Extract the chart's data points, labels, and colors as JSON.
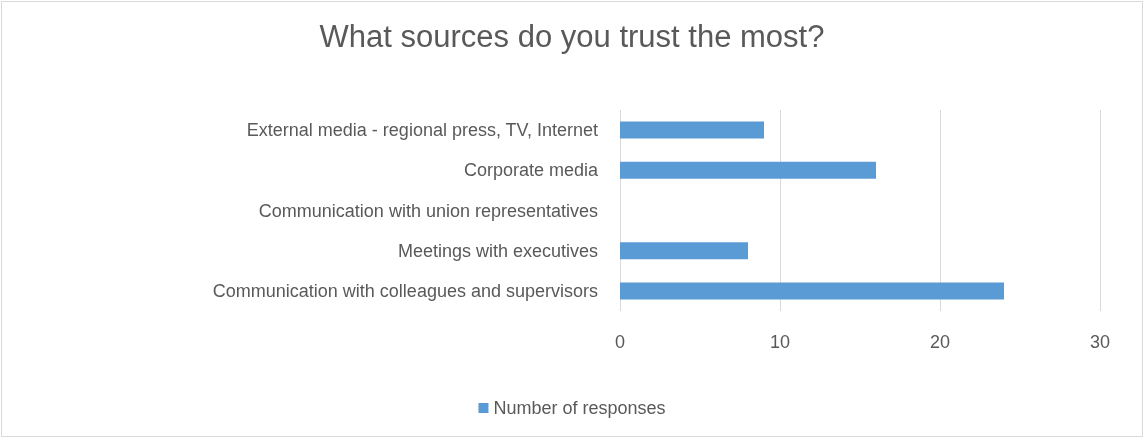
{
  "chart_data": {
    "type": "bar",
    "orientation": "horizontal",
    "title": "What sources do you trust the most?",
    "categories": [
      "External media - regional press, TV, Internet",
      "Corporate media",
      "Communication with union representatives",
      "Meetings with executives",
      "Communication with colleagues and supervisors"
    ],
    "series": [
      {
        "name": "Number of responses",
        "color": "#5b9bd5",
        "values": [
          9,
          16,
          0,
          8,
          24
        ]
      }
    ],
    "xlim": [
      0,
      30
    ],
    "xticks": [
      0,
      10,
      20,
      30
    ],
    "grid": "x",
    "legend": "bottom"
  }
}
